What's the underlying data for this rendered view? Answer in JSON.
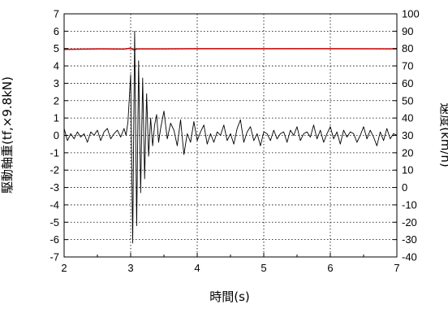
{
  "chart_data": {
    "type": "line",
    "xlabel": "時間(s)",
    "ylabel_left": "駆動軸重(tf,×9.8kN)",
    "ylabel_right": "速度(km/h)",
    "xlim": [
      2,
      7
    ],
    "ylim_left": [
      -7,
      7
    ],
    "ylim_right": [
      -40,
      100
    ],
    "x_ticks": [
      2,
      3,
      4,
      5,
      6,
      7
    ],
    "y_left_ticks": [
      -7,
      -6,
      -5,
      -4,
      -3,
      -2,
      -1,
      0,
      1,
      2,
      3,
      4,
      5,
      6,
      7
    ],
    "y_right_ticks": [
      -40,
      -30,
      -20,
      -10,
      0,
      10,
      20,
      30,
      40,
      50,
      60,
      70,
      80,
      90,
      100
    ],
    "grid": true,
    "grid_style": "dotted",
    "series": [
      {
        "axis": "right",
        "color": "#cc0000",
        "x": [
          2.0,
          2.5,
          2.9,
          3.0,
          3.05,
          3.1,
          3.5,
          4.0,
          5.0,
          6.0,
          7.0
        ],
        "values": [
          79.5,
          79.8,
          79.7,
          80.2,
          79.2,
          79.8,
          79.8,
          79.9,
          79.9,
          79.9,
          79.8
        ]
      },
      {
        "axis": "left",
        "color": "#000000",
        "x": [
          2.0,
          2.05,
          2.1,
          2.15,
          2.2,
          2.25,
          2.3,
          2.35,
          2.4,
          2.45,
          2.5,
          2.55,
          2.6,
          2.65,
          2.7,
          2.75,
          2.8,
          2.85,
          2.9,
          2.93,
          2.96,
          3.0,
          3.03,
          3.06,
          3.09,
          3.12,
          3.15,
          3.18,
          3.21,
          3.24,
          3.27,
          3.3,
          3.33,
          3.36,
          3.39,
          3.42,
          3.45,
          3.5,
          3.55,
          3.6,
          3.65,
          3.7,
          3.75,
          3.8,
          3.85,
          3.9,
          3.95,
          4.0,
          4.05,
          4.1,
          4.15,
          4.2,
          4.25,
          4.3,
          4.35,
          4.4,
          4.45,
          4.5,
          4.55,
          4.6,
          4.65,
          4.7,
          4.75,
          4.8,
          4.85,
          4.9,
          4.95,
          5.0,
          5.05,
          5.1,
          5.15,
          5.2,
          5.25,
          5.3,
          5.35,
          5.4,
          5.45,
          5.5,
          5.55,
          5.6,
          5.65,
          5.7,
          5.75,
          5.8,
          5.85,
          5.9,
          5.95,
          6.0,
          6.05,
          6.1,
          6.15,
          6.2,
          6.25,
          6.3,
          6.35,
          6.4,
          6.45,
          6.5,
          6.55,
          6.6,
          6.65,
          6.7,
          6.75,
          6.8,
          6.85,
          6.9,
          6.95,
          7.0
        ],
        "values": [
          0.4,
          -0.3,
          0.1,
          -0.2,
          0.2,
          -0.1,
          0.1,
          -0.4,
          0.2,
          0.0,
          0.3,
          -0.3,
          0.2,
          0.4,
          -0.2,
          0.1,
          0.3,
          -0.1,
          0.4,
          0.0,
          0.8,
          3.5,
          -6.2,
          6.0,
          -5.2,
          4.3,
          -3.3,
          3.3,
          -2.5,
          2.4,
          -1.2,
          1.0,
          -0.6,
          0.6,
          1.2,
          -0.4,
          0.4,
          1.4,
          -0.2,
          0.7,
          0.3,
          -0.6,
          0.9,
          -1.1,
          0.1,
          -0.4,
          0.8,
          -0.3,
          0.2,
          0.6,
          -0.5,
          0.1,
          -0.4,
          0.2,
          0.0,
          0.6,
          -0.3,
          0.1,
          -0.5,
          0.4,
          0.9,
          -0.4,
          0.2,
          0.5,
          -0.3,
          0.1,
          -0.6,
          0.2,
          0.1,
          -0.3,
          0.3,
          -0.2,
          0.1,
          0.2,
          -0.4,
          0.3,
          0.0,
          0.5,
          -0.3,
          0.1,
          0.2,
          -0.1,
          0.6,
          -0.2,
          0.3,
          -0.4,
          0.1,
          0.5,
          -0.2,
          0.2,
          -0.5,
          0.3,
          -0.1,
          0.2,
          0.1,
          -0.4,
          0.0,
          0.5,
          -0.2,
          0.3,
          -0.1,
          -0.6,
          0.2,
          -0.3,
          0.4,
          -0.2,
          0.1,
          0.0
        ]
      }
    ]
  }
}
